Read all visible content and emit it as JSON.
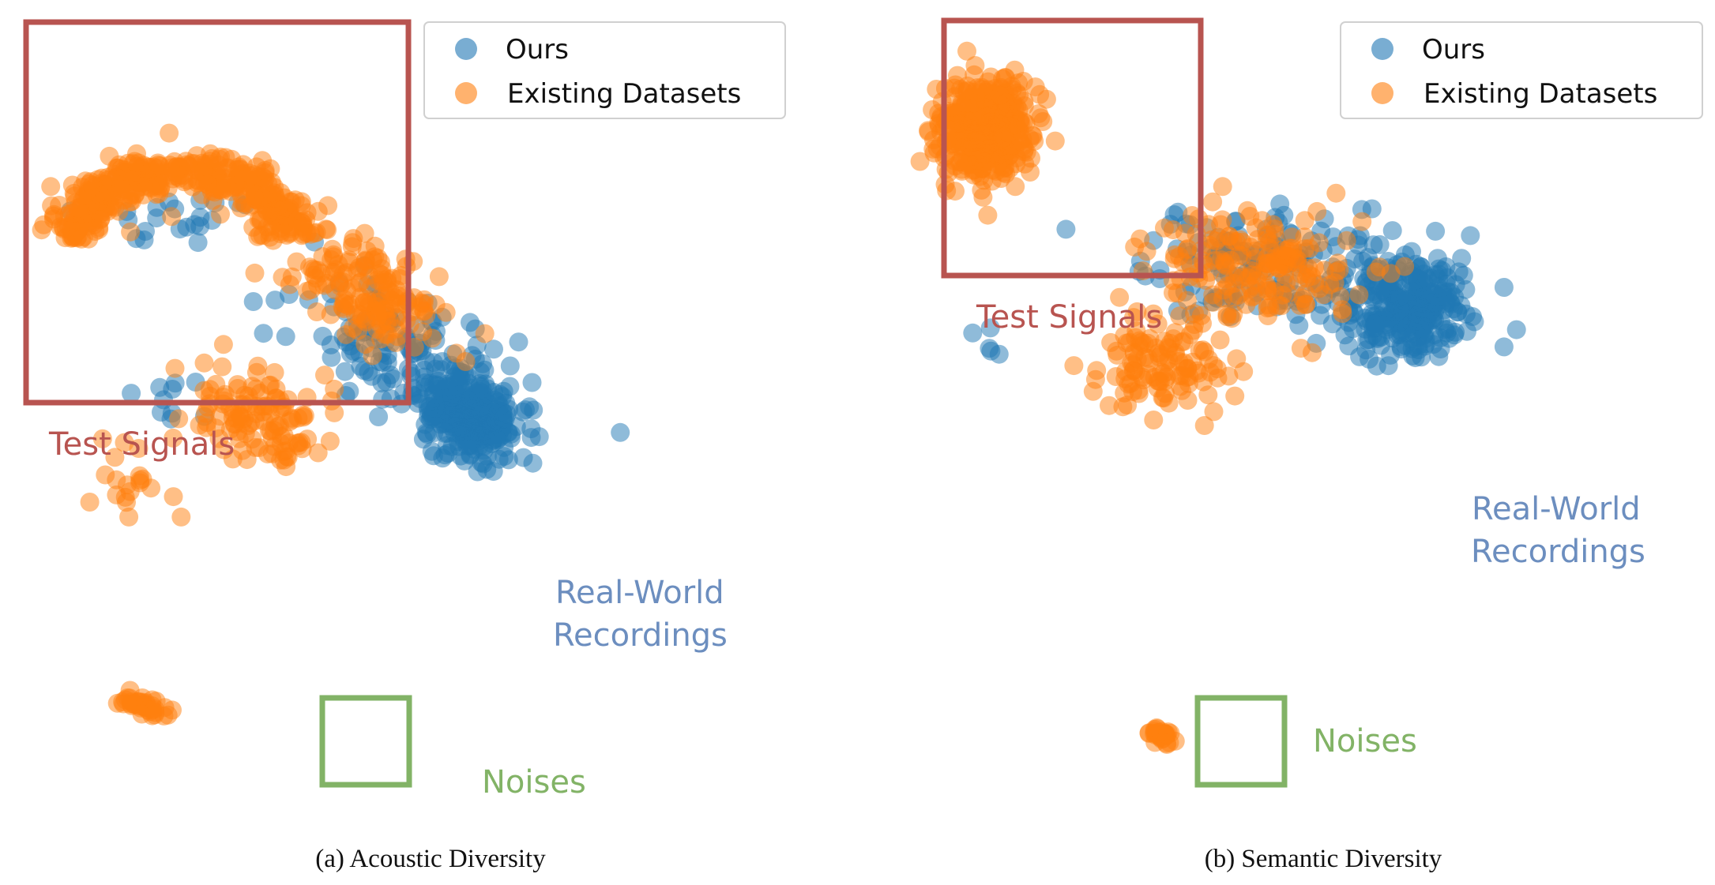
{
  "colors": {
    "ours": "#1f77b4",
    "existing": "#ff7f0e",
    "test_box": "#b85450",
    "noise_box": "#82b366",
    "real_world_text": "#6c8ebf"
  },
  "chart_data": [
    {
      "type": "scatter",
      "caption": "(a) Acoustic Diversity",
      "legend": {
        "ours": "Ours",
        "existing": "Existing Datasets",
        "placement": "top-right"
      },
      "series": [
        {
          "name": "Ours",
          "color": "#1f77b4",
          "clusters": [
            {
              "cx": 58,
              "cy": 24,
              "sx": 3.2,
              "sy": 2.4,
              "n": 260,
              "rot": -0.6
            },
            {
              "cx": 50,
              "cy": 32,
              "sx": 9,
              "sy": 4.5,
              "n": 170,
              "rot": -0.55
            },
            {
              "cx": 20,
              "cy": 52,
              "sx": 7,
              "sy": 2.0,
              "n": 22,
              "rot": 0.0
            },
            {
              "cx": 18,
              "cy": 28,
              "sx": 2.2,
              "sy": 2.2,
              "n": 10,
              "rot": 0.0
            }
          ]
        },
        {
          "name": "Existing Datasets",
          "color": "#ff7f0e",
          "clusters": [
            {
              "arc": true,
              "cx": 20,
              "cy": 62,
              "r": 12,
              "thick": 2.6,
              "n": 420
            },
            {
              "cx": 45,
              "cy": 42,
              "sx": 6,
              "sy": 3.5,
              "n": 160,
              "rot": -0.55
            },
            {
              "cx": 30,
              "cy": 24,
              "sx": 4.5,
              "sy": 3.5,
              "n": 120,
              "rot": -0.4
            },
            {
              "cx": 14,
              "cy": 14,
              "sx": 3,
              "sy": 3,
              "n": 20,
              "rot": 0.0
            },
            {
              "cx": 15,
              "cy": -18,
              "sx": 1.5,
              "sy": 0.6,
              "n": 40,
              "rot": -0.3
            }
          ]
        }
      ],
      "annotations": {
        "test_signals": "Test Signals",
        "noises": "Noises",
        "real_world_1": "Real-World",
        "real_world_2": "Recordings"
      },
      "xlim": [
        0,
        100
      ],
      "ylim": [
        -30,
        80
      ],
      "grid": false,
      "axes": false
    },
    {
      "type": "scatter",
      "caption": "(b) Semantic Diversity",
      "legend": {
        "ours": "Ours",
        "existing": "Existing Datasets",
        "placement": "top-right"
      },
      "series": [
        {
          "name": "Ours",
          "color": "#1f77b4",
          "clusters": [
            {
              "cx": 62,
              "cy": 40,
              "sx": 4.5,
              "sy": 3.5,
              "n": 280,
              "rot": -0.2
            },
            {
              "cx": 45,
              "cy": 46,
              "sx": 9,
              "sy": 4,
              "n": 140,
              "rot": -0.1
            },
            {
              "cx": 8,
              "cy": 35,
              "sx": 3,
              "sy": 1.2,
              "n": 5,
              "rot": 0.0
            }
          ]
        },
        {
          "name": "Existing Datasets",
          "color": "#ff7f0e",
          "clusters": [
            {
              "cx": 7,
              "cy": 66,
              "sx": 3.2,
              "sy": 3.6,
              "n": 420,
              "rot": 0.0
            },
            {
              "cx": 42,
              "cy": 46,
              "sx": 7,
              "sy": 4,
              "n": 180,
              "rot": 0.0
            },
            {
              "cx": 30,
              "cy": 32,
              "sx": 4.5,
              "sy": 4,
              "n": 120,
              "rot": 0.0
            },
            {
              "cx": 30,
              "cy": -22,
              "sx": 0.8,
              "sy": 0.6,
              "n": 30,
              "rot": -0.6
            }
          ]
        }
      ],
      "annotations": {
        "test_signals": "Test Signals",
        "noises": "Noises",
        "real_world_1": "Real-World",
        "real_world_2": "Recordings"
      },
      "xlim": [
        0,
        100
      ],
      "ylim": [
        -30,
        80
      ],
      "grid": false,
      "axes": false
    }
  ]
}
